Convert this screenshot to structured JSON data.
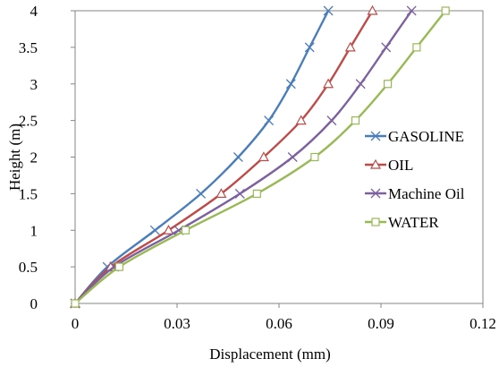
{
  "chart_data": {
    "type": "line",
    "title": "",
    "xlabel": "Displacement (mm)",
    "ylabel": "Height (m)",
    "xlim": [
      0,
      0.12
    ],
    "ylim": [
      0,
      4
    ],
    "xticks": [
      0,
      0.03,
      0.06,
      0.09,
      0.12
    ],
    "xtick_labels": [
      "0",
      "0.03",
      "0.06",
      "0.09",
      "0.12"
    ],
    "yticks": [
      0,
      0.5,
      1,
      1.5,
      2,
      2.5,
      3,
      3.5,
      4
    ],
    "ytick_labels": [
      "0",
      "0.5",
      "1",
      "1.5",
      "2",
      "2.5",
      "3",
      "3.5",
      "4"
    ],
    "grid": false,
    "legend_position": "right",
    "series": [
      {
        "name": "GASOLINE",
        "color": "#4a7ebb",
        "marker": "x",
        "x": [
          0,
          0.0095,
          0.0235,
          0.037,
          0.048,
          0.057,
          0.0635,
          0.069,
          0.0745
        ],
        "y": [
          0,
          0.5,
          1,
          1.5,
          2,
          2.5,
          3,
          3.5,
          4
        ]
      },
      {
        "name": "OIL",
        "color": "#be4b48",
        "marker": "triangle",
        "x": [
          0,
          0.0105,
          0.0275,
          0.043,
          0.0555,
          0.0665,
          0.0745,
          0.081,
          0.0875
        ],
        "y": [
          0,
          0.5,
          1,
          1.5,
          2,
          2.5,
          3,
          3.5,
          4
        ]
      },
      {
        "name": "Machine Oil",
        "color": "#7d60a0",
        "marker": "x",
        "x": [
          0,
          0.0115,
          0.0305,
          0.0485,
          0.064,
          0.0755,
          0.084,
          0.0915,
          0.099
        ],
        "y": [
          0,
          0.5,
          1,
          1.5,
          2,
          2.5,
          3,
          3.5,
          4
        ]
      },
      {
        "name": "WATER",
        "color": "#98b954",
        "marker": "square",
        "x": [
          0,
          0.013,
          0.0325,
          0.0535,
          0.0705,
          0.0825,
          0.092,
          0.1005,
          0.109
        ],
        "y": [
          0,
          0.5,
          1,
          1.5,
          2,
          2.5,
          3,
          3.5,
          4
        ]
      }
    ]
  }
}
